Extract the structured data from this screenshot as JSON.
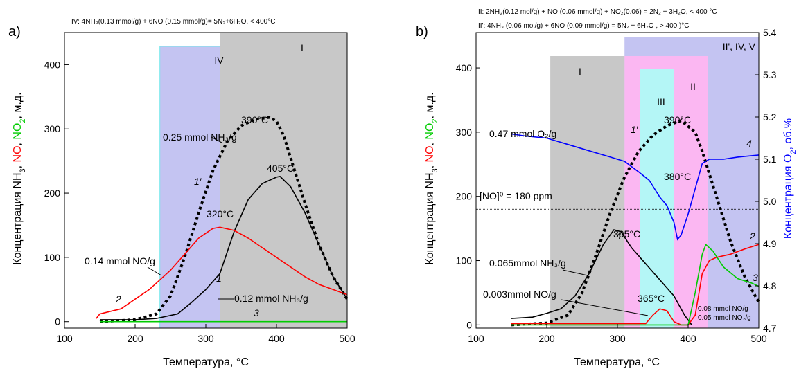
{
  "colors": {
    "black": "#000000",
    "red": "#ff0000",
    "green": "#00cc00",
    "blue": "#0000ff",
    "gray_zone": "#c8c8c8",
    "lavender_zone": "#c4c4f2",
    "pink_zone": "#fbb7f2",
    "cyan_zone": "#b4f6f6",
    "border_cyan": "#74e8ec"
  },
  "panel_a": {
    "label": "a)",
    "header": "IV:  4NH₃(0.13 mmol/g) + 6NO (0.15 mmol/g)= 5N₂+6H₂O, < 400°C",
    "ylabel_parts": [
      {
        "text": "Концентрация NH",
        "color": "black",
        "sub": false
      },
      {
        "text": "3",
        "color": "black",
        "sub": true
      },
      {
        "text": ", ",
        "color": "black",
        "sub": false
      },
      {
        "text": "NO",
        "color": "red",
        "sub": false
      },
      {
        "text": ", ",
        "color": "black",
        "sub": false
      },
      {
        "text": "NO",
        "color": "green",
        "sub": false
      },
      {
        "text": "2",
        "color": "green",
        "sub": true
      },
      {
        "text": ", м.д.",
        "color": "black",
        "sub": false
      }
    ],
    "xlabel": "Температура, °C",
    "zones": [
      {
        "label": "IV",
        "from": 235,
        "to": 400,
        "color": "lavender_zone"
      },
      {
        "label": "I",
        "from": 320,
        "to": 500,
        "color": "gray_zone"
      }
    ],
    "annotations": {
      "peak_390": "390°C",
      "peak_405": "405°C",
      "peak_320": "320°C",
      "nh3_025": "0.25 mmol NH₃/g",
      "no_014": "0.14 mmol NO/g",
      "nh3_012": "0.12 mmol NH₃/g",
      "c1p": "1′",
      "c1": "1",
      "c2": "2",
      "c3": "3"
    }
  },
  "panel_b": {
    "label": "b)",
    "header_1": "II: 2NH₃(0.12 mol/g) + NO (0.06 mmol/g) + NO₂(0.06) = 2N₂ + 3H₂O, < 400 °C",
    "header_2": "II': 4NH₃ (0.06 mol/g) + 6NO (0.09 mmol/g) = 5N₂ + 6H₂O , > 400 )°C",
    "ylabel_parts": [
      {
        "text": "Концентрация NH",
        "color": "black",
        "sub": false
      },
      {
        "text": "3",
        "color": "black",
        "sub": true
      },
      {
        "text": ", ",
        "color": "black",
        "sub": false
      },
      {
        "text": "NO",
        "color": "red",
        "sub": false
      },
      {
        "text": ", ",
        "color": "black",
        "sub": false
      },
      {
        "text": "NO",
        "color": "green",
        "sub": false
      },
      {
        "text": "2",
        "color": "green",
        "sub": true
      },
      {
        "text": ", м.д.",
        "color": "black",
        "sub": false
      }
    ],
    "ylabel_right_parts": [
      {
        "text": "Концентрация O",
        "color": "blue",
        "sub": false
      },
      {
        "text": "2",
        "color": "blue",
        "sub": true
      },
      {
        "text": ", об.%",
        "color": "blue",
        "sub": false
      }
    ],
    "xlabel": "Температура, °C",
    "zones": [
      {
        "label": "I",
        "from": 205,
        "to": 310,
        "color": "gray_zone"
      },
      {
        "label": "III",
        "from": 332,
        "to": 380,
        "color": "cyan_zone"
      },
      {
        "label": "II",
        "from": 310,
        "to": 428,
        "color": "pink_zone"
      },
      {
        "label": "II', IV, V",
        "from": 310,
        "to": 500,
        "color": "lavender_zone"
      }
    ],
    "annotations": {
      "o2_047": "0.47 mmol O₂/g",
      "peak_390": "390°C",
      "peak_380": "380°C",
      "peak_305": "305°C",
      "peak_365": "365°C",
      "no_ref": "[NO]⁰ = 180 ppm",
      "nh3_0065": "0.065mmol NH₃/g",
      "no_0003": "0.003mmol NO/g",
      "no_008": "0.08 mmol NO/g",
      "no2_005": "0.05 mmol NO₂/g",
      "c1p": "1′",
      "c1": "1",
      "c2": "2",
      "c3": "3",
      "c4": "4"
    }
  },
  "chart_data": [
    {
      "type": "line",
      "panel": "a",
      "xlabel": "Температура, °C",
      "xlim": [
        100,
        500
      ],
      "ylim": [
        -10,
        450
      ],
      "xticks": [
        100,
        200,
        300,
        400,
        500
      ],
      "yticks": [
        0,
        100,
        200,
        300,
        400
      ],
      "series": [
        {
          "name": "1′",
          "color": "black",
          "style": "dotted",
          "x": [
            150,
            200,
            230,
            250,
            270,
            290,
            310,
            330,
            350,
            370,
            390,
            400,
            410,
            420,
            440,
            460,
            480,
            500
          ],
          "y": [
            0,
            3,
            12,
            40,
            100,
            170,
            235,
            280,
            305,
            315,
            318,
            312,
            290,
            255,
            185,
            120,
            70,
            35
          ]
        },
        {
          "name": "1",
          "color": "black",
          "style": "solid",
          "x": [
            150,
            200,
            230,
            260,
            280,
            300,
            320,
            340,
            360,
            380,
            400,
            405,
            420,
            440,
            460,
            480,
            500
          ],
          "y": [
            3,
            3,
            5,
            12,
            30,
            50,
            75,
            140,
            190,
            215,
            225,
            226,
            210,
            170,
            120,
            70,
            35
          ]
        },
        {
          "name": "2",
          "color": "red",
          "style": "solid",
          "x": [
            145,
            150,
            180,
            200,
            220,
            250,
            270,
            290,
            310,
            320,
            340,
            360,
            380,
            400,
            420,
            440,
            460,
            480,
            500
          ],
          "y": [
            5,
            12,
            20,
            35,
            50,
            80,
            105,
            130,
            145,
            147,
            142,
            130,
            115,
            100,
            85,
            70,
            58,
            50,
            42
          ]
        },
        {
          "name": "3",
          "color": "green",
          "style": "solid",
          "x": [
            150,
            500
          ],
          "y": [
            0,
            0
          ]
        }
      ]
    },
    {
      "type": "line",
      "panel": "b",
      "xlabel": "Температура, °C",
      "xlim": [
        100,
        500
      ],
      "ylim": [
        -5,
        455
      ],
      "y2lim": [
        4.7,
        5.4
      ],
      "xticks": [
        100,
        200,
        300,
        400,
        500
      ],
      "yticks": [
        0,
        100,
        200,
        300,
        400
      ],
      "y2ticks": [
        4.7,
        4.8,
        4.9,
        5.0,
        5.1,
        5.2,
        5.3,
        5.4
      ],
      "reference_line": 180,
      "series": [
        {
          "name": "1′",
          "color": "black",
          "style": "dotted",
          "axis": "left",
          "x": [
            150,
            200,
            230,
            250,
            270,
            290,
            310,
            330,
            350,
            370,
            390,
            410,
            420,
            440,
            460,
            480,
            500
          ],
          "y": [
            0,
            3,
            15,
            50,
            110,
            175,
            230,
            270,
            295,
            310,
            318,
            300,
            270,
            200,
            130,
            75,
            35
          ]
        },
        {
          "name": "1",
          "color": "black",
          "style": "solid",
          "axis": "left",
          "x": [
            150,
            180,
            200,
            220,
            240,
            260,
            280,
            295,
            305,
            320,
            340,
            360,
            380,
            395,
            405
          ],
          "y": [
            10,
            12,
            18,
            25,
            45,
            80,
            125,
            148,
            145,
            120,
            95,
            70,
            45,
            15,
            0
          ]
        },
        {
          "name": "2",
          "color": "red",
          "style": "solid",
          "axis": "left",
          "x": [
            150,
            340,
            350,
            360,
            370,
            380,
            390,
            400,
            410,
            420,
            430,
            440,
            460,
            480,
            500
          ],
          "y": [
            2,
            2,
            15,
            25,
            22,
            5,
            0,
            0,
            15,
            80,
            100,
            105,
            110,
            118,
            125
          ]
        },
        {
          "name": "3",
          "color": "green",
          "style": "solid",
          "axis": "left",
          "x": [
            150,
            400,
            410,
            420,
            425,
            435,
            450,
            470,
            490,
            500
          ],
          "y": [
            0,
            0,
            50,
            110,
            125,
            115,
            90,
            72,
            65,
            60
          ]
        },
        {
          "name": "4",
          "color": "blue",
          "style": "solid",
          "axis": "right",
          "x": [
            150,
            170,
            200,
            230,
            260,
            290,
            310,
            330,
            345,
            360,
            370,
            380,
            385,
            390,
            400,
            410,
            420,
            430,
            450,
            470,
            500
          ],
          "y": [
            5.16,
            5.155,
            5.15,
            5.135,
            5.12,
            5.105,
            5.095,
            5.07,
            5.05,
            5.01,
            4.99,
            4.95,
            4.91,
            4.92,
            4.97,
            5.03,
            5.09,
            5.1,
            5.1,
            5.105,
            5.11
          ]
        }
      ]
    }
  ]
}
